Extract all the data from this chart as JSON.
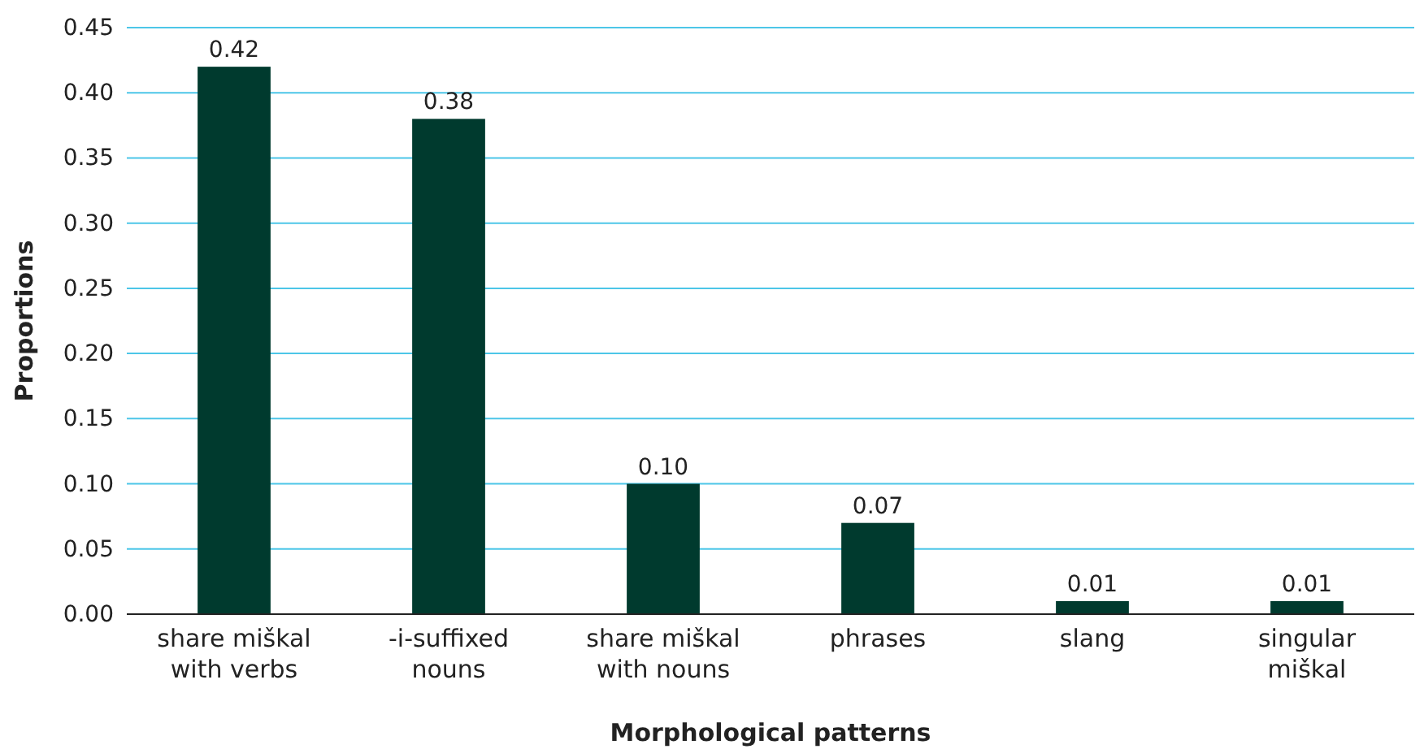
{
  "chart_data": {
    "type": "bar",
    "xlabel": "Morphological patterns",
    "ylabel": "Proportions",
    "categories": [
      "share miškal\nwith verbs",
      "-i-suffixed\nnouns",
      "share miškal\nwith nouns",
      "phrases",
      "slang",
      "singular\nmiškal"
    ],
    "values": [
      0.42,
      0.38,
      0.1,
      0.07,
      0.01,
      0.01
    ],
    "color": "#003a2e",
    "ylim": [
      0,
      0.45
    ],
    "yticks": [
      {
        "value": 0,
        "label": "0.00"
      },
      {
        "value": 0.05,
        "label": "0.05"
      },
      {
        "value": 0.1,
        "label": "0.10"
      },
      {
        "value": 0.15,
        "label": "0.15"
      },
      {
        "value": 0.2,
        "label": "0.20"
      },
      {
        "value": 0.25,
        "label": "0.25"
      },
      {
        "value": 0.3,
        "label": "0.30"
      },
      {
        "value": 0.35,
        "label": "0.35"
      },
      {
        "value": 0.4,
        "label": "0.40"
      },
      {
        "value": 0.45,
        "label": "0.45"
      }
    ],
    "grid": "y",
    "value_labels": [
      "0.42",
      "0.38",
      "0.10",
      "0.07",
      "0.01",
      "0.01"
    ]
  }
}
